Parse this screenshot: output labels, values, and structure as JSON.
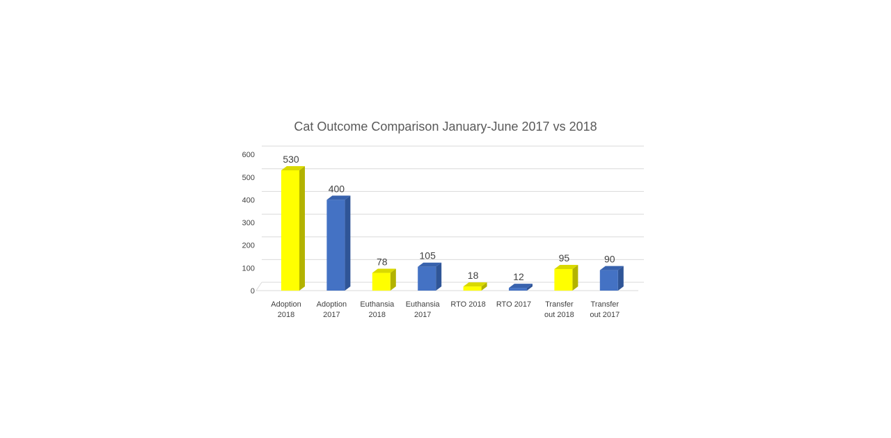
{
  "chart_data": {
    "type": "bar",
    "title": "Cat Outcome Comparison January-June 2017 vs 2018",
    "categories": [
      [
        "Adoption",
        "2018"
      ],
      [
        "Adoption",
        "2017"
      ],
      [
        "Euthansia",
        "2018"
      ],
      [
        "Euthansia",
        "2017"
      ],
      [
        "RTO 2018"
      ],
      [
        "RTO 2017"
      ],
      [
        "Transfer",
        "out 2018"
      ],
      [
        "Transfer",
        "out 2017"
      ]
    ],
    "values": [
      530,
      400,
      78,
      105,
      18,
      12,
      95,
      90
    ],
    "bar_colors": [
      "yellow",
      "blue",
      "yellow",
      "blue",
      "yellow",
      "blue",
      "yellow",
      "blue"
    ],
    "colors": {
      "yellow": {
        "front": "#ffff00",
        "side": "#b3b300",
        "top": "#d9d900"
      },
      "blue": {
        "front": "#4472c4",
        "side": "#2f5597",
        "top": "#3862ad"
      }
    },
    "ylim": [
      0,
      600
    ],
    "yticks": [
      0,
      100,
      200,
      300,
      400,
      500,
      600
    ],
    "xlabel": "",
    "ylabel": "",
    "grid": true,
    "legend": "none"
  }
}
